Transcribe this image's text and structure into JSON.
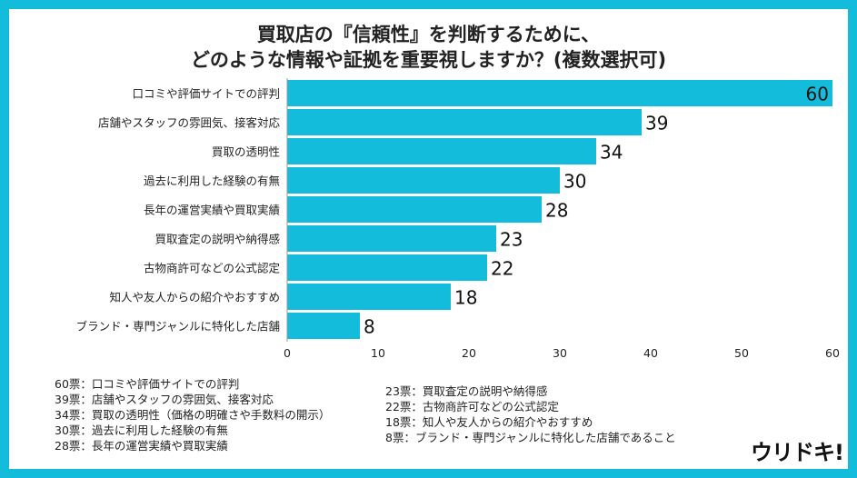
{
  "title_lines": [
    "買取店の『信頼性』を判断するために、",
    "どのような情報や証拠を重要視しますか？(複数選択可)"
  ],
  "colors": {
    "frame": "#14bcdc",
    "bar": "#14bcdc"
  },
  "chart_data": {
    "type": "bar",
    "orientation": "horizontal",
    "categories": [
      "口コミや評価サイトでの評判",
      "店舗やスタッフの雰囲気、接客対応",
      "買取の透明性",
      "過去に利用した経験の有無",
      "長年の運営実績や買取実績",
      "買取査定の説明や納得感",
      "古物商許可などの公式認定",
      "知人や友人からの紹介やおすすめ",
      "ブランド・専門ジャンルに特化した店舗"
    ],
    "values": [
      60,
      39,
      34,
      30,
      28,
      23,
      22,
      18,
      8
    ],
    "xlim": [
      0,
      60
    ],
    "xticks": [
      0,
      10,
      20,
      30,
      40,
      50,
      60
    ],
    "grid": false
  },
  "legend_left": [
    "60票：口コミや評価サイトでの評判",
    "39票：店舗やスタッフの雰囲気、接客対応",
    "34票：買取の透明性（価格の明確さや手数料の開示）",
    "30票：過去に利用した経験の有無",
    "28票：長年の運営実績や買取実績"
  ],
  "legend_right": [
    "23票：買取査定の説明や納得感",
    "22票：古物商許可などの公式認定",
    "18票：知人や友人からの紹介やおすすめ",
    "8票：ブランド・専門ジャンルに特化した店舗であること"
  ],
  "logo": "ウリドキ!"
}
